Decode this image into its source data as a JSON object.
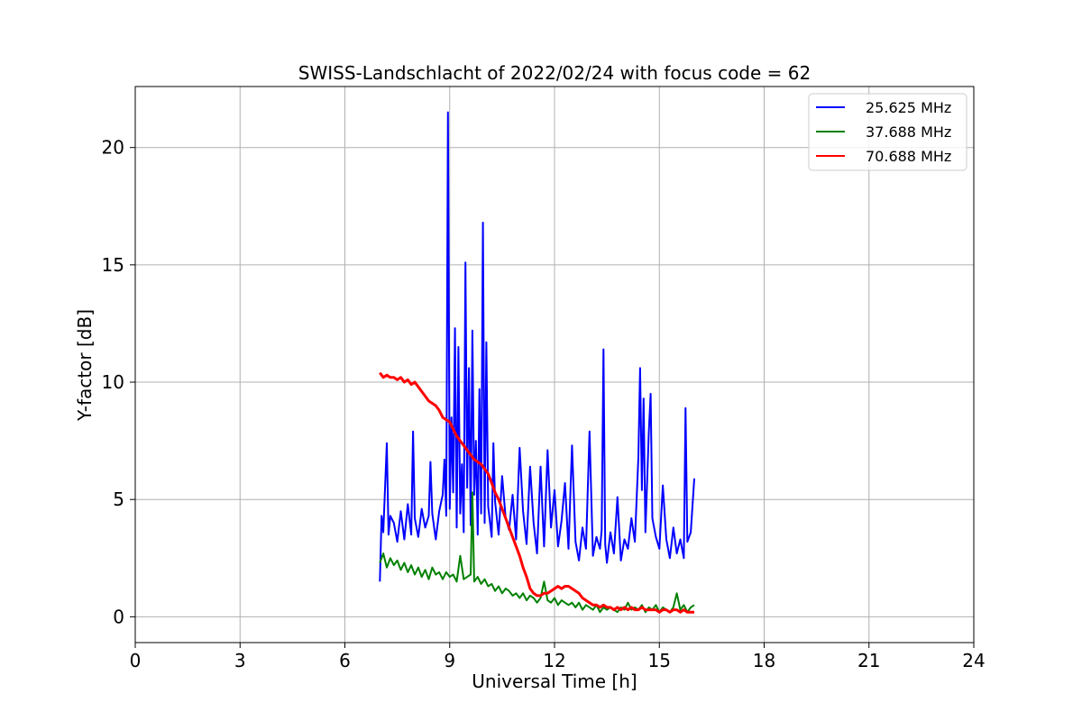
{
  "chart_data": {
    "type": "line",
    "title": "SWISS-Landschlacht of 2022/02/24 with focus code = 62",
    "xlabel": "Universal Time [h]",
    "ylabel": "Y-factor [dB]",
    "xlim": [
      0,
      24
    ],
    "ylim": [
      -1.1,
      22.6
    ],
    "xticks": [
      0,
      3,
      6,
      9,
      12,
      15,
      18,
      21,
      24
    ],
    "yticks": [
      0,
      5,
      10,
      15,
      20
    ],
    "grid": true,
    "legend_position": "top-right",
    "series": [
      {
        "name": "25.625 MHz",
        "color": "#0000ff",
        "x": [
          7.0,
          7.05,
          7.1,
          7.2,
          7.25,
          7.3,
          7.4,
          7.5,
          7.6,
          7.7,
          7.8,
          7.9,
          7.95,
          8.0,
          8.1,
          8.2,
          8.3,
          8.4,
          8.45,
          8.5,
          8.6,
          8.7,
          8.8,
          8.85,
          8.9,
          8.95,
          9.0,
          9.05,
          9.1,
          9.15,
          9.2,
          9.25,
          9.3,
          9.35,
          9.4,
          9.45,
          9.5,
          9.55,
          9.6,
          9.65,
          9.7,
          9.75,
          9.8,
          9.85,
          9.9,
          9.95,
          10.0,
          10.05,
          10.1,
          10.2,
          10.25,
          10.3,
          10.4,
          10.5,
          10.6,
          10.7,
          10.8,
          10.9,
          11.0,
          11.1,
          11.2,
          11.3,
          11.4,
          11.5,
          11.6,
          11.7,
          11.8,
          11.9,
          12.0,
          12.1,
          12.2,
          12.3,
          12.4,
          12.5,
          12.6,
          12.7,
          12.8,
          12.9,
          13.0,
          13.1,
          13.2,
          13.3,
          13.35,
          13.4,
          13.45,
          13.5,
          13.6,
          13.7,
          13.8,
          13.9,
          14.0,
          14.1,
          14.2,
          14.3,
          14.4,
          14.45,
          14.5,
          14.55,
          14.6,
          14.7,
          14.75,
          14.8,
          14.9,
          15.0,
          15.1,
          15.2,
          15.3,
          15.4,
          15.5,
          15.6,
          15.7,
          15.75,
          15.8,
          15.9,
          16.0
        ],
        "values": [
          1.5,
          4.3,
          3.6,
          7.4,
          3.5,
          4.3,
          4.0,
          3.2,
          4.5,
          3.3,
          4.8,
          3.5,
          7.9,
          4.2,
          3.4,
          4.6,
          3.8,
          4.3,
          6.6,
          4.4,
          3.3,
          4.5,
          5.2,
          6.7,
          4.3,
          21.5,
          4.6,
          8.5,
          5.3,
          12.3,
          3.8,
          11.5,
          4.4,
          6.5,
          3.6,
          15.1,
          5.5,
          10.6,
          3.9,
          12.2,
          5.2,
          7.5,
          3.5,
          9.7,
          4.4,
          16.8,
          4.0,
          11.7,
          4.7,
          3.4,
          7.4,
          4.9,
          3.5,
          6.0,
          4.2,
          3.7,
          5.2,
          3.3,
          7.2,
          4.5,
          3.1,
          6.4,
          4.0,
          2.7,
          6.4,
          3.0,
          7.1,
          3.8,
          5.4,
          3.0,
          4.1,
          5.7,
          2.9,
          7.3,
          3.2,
          2.4,
          3.8,
          2.9,
          7.9,
          2.6,
          3.4,
          2.9,
          3.7,
          11.4,
          3.1,
          2.3,
          3.6,
          2.7,
          5.1,
          2.4,
          3.3,
          2.9,
          4.2,
          3.2,
          6.8,
          10.6,
          5.4,
          9.3,
          3.6,
          7.9,
          9.5,
          4.2,
          3.4,
          2.9,
          5.6,
          3.3,
          2.5,
          3.8,
          2.7,
          3.3,
          2.5,
          8.9,
          3.2,
          3.6,
          5.9
        ]
      },
      {
        "name": "37.688 MHz",
        "color": "#008000",
        "x": [
          7.0,
          7.1,
          7.2,
          7.3,
          7.4,
          7.5,
          7.6,
          7.7,
          7.8,
          7.9,
          8.0,
          8.1,
          8.2,
          8.3,
          8.4,
          8.5,
          8.6,
          8.7,
          8.8,
          8.9,
          9.0,
          9.1,
          9.2,
          9.3,
          9.4,
          9.5,
          9.6,
          9.65,
          9.7,
          9.8,
          9.9,
          10.0,
          10.1,
          10.2,
          10.3,
          10.4,
          10.5,
          10.6,
          10.7,
          10.8,
          10.9,
          11.0,
          11.1,
          11.2,
          11.3,
          11.4,
          11.5,
          11.6,
          11.7,
          11.8,
          11.9,
          12.0,
          12.1,
          12.2,
          12.3,
          12.4,
          12.5,
          12.6,
          12.7,
          12.8,
          12.9,
          13.0,
          13.1,
          13.2,
          13.3,
          13.4,
          13.5,
          13.6,
          13.7,
          13.8,
          13.9,
          14.0,
          14.1,
          14.2,
          14.3,
          14.4,
          14.5,
          14.6,
          14.7,
          14.8,
          14.9,
          15.0,
          15.1,
          15.2,
          15.3,
          15.4,
          15.5,
          15.6,
          15.7,
          15.8,
          15.9,
          16.0
        ],
        "values": [
          2.3,
          2.7,
          2.1,
          2.5,
          2.2,
          2.4,
          2.0,
          2.3,
          1.9,
          2.2,
          1.8,
          2.1,
          1.7,
          2.0,
          1.6,
          2.1,
          1.8,
          1.9,
          1.6,
          1.9,
          1.7,
          1.8,
          1.5,
          2.6,
          1.6,
          1.7,
          1.8,
          5.3,
          1.5,
          1.7,
          1.4,
          1.6,
          1.3,
          1.4,
          1.1,
          1.3,
          1.0,
          1.2,
          1.1,
          0.9,
          1.0,
          0.8,
          1.0,
          0.7,
          0.9,
          0.8,
          0.6,
          0.8,
          1.5,
          0.7,
          0.6,
          0.8,
          0.5,
          0.7,
          0.6,
          0.5,
          0.6,
          0.4,
          0.6,
          0.3,
          0.5,
          0.4,
          0.3,
          0.5,
          0.2,
          0.4,
          0.3,
          0.4,
          0.3,
          0.2,
          0.4,
          0.3,
          0.6,
          0.3,
          0.4,
          0.3,
          0.5,
          0.2,
          0.4,
          0.3,
          0.5,
          0.2,
          0.4,
          0.3,
          0.2,
          0.4,
          1.0,
          0.3,
          0.5,
          0.2,
          0.4,
          0.5
        ]
      },
      {
        "name": "70.688 MHz",
        "color": "#ff0000",
        "x": [
          7.0,
          7.1,
          7.2,
          7.3,
          7.4,
          7.5,
          7.6,
          7.7,
          7.8,
          7.9,
          8.0,
          8.1,
          8.2,
          8.3,
          8.4,
          8.5,
          8.6,
          8.7,
          8.8,
          8.9,
          9.0,
          9.1,
          9.2,
          9.3,
          9.4,
          9.5,
          9.6,
          9.7,
          9.8,
          9.9,
          10.0,
          10.1,
          10.2,
          10.3,
          10.4,
          10.5,
          10.6,
          10.7,
          10.8,
          10.9,
          11.0,
          11.1,
          11.2,
          11.3,
          11.4,
          11.5,
          11.6,
          11.7,
          11.8,
          11.9,
          12.0,
          12.1,
          12.2,
          12.3,
          12.4,
          12.5,
          12.6,
          12.7,
          12.8,
          12.9,
          13.0,
          13.1,
          13.2,
          13.3,
          13.4,
          13.5,
          13.6,
          13.7,
          13.8,
          13.9,
          14.0,
          14.1,
          14.2,
          14.3,
          14.4,
          14.5,
          14.6,
          14.7,
          14.8,
          14.9,
          15.0,
          15.1,
          15.2,
          15.3,
          15.4,
          15.5,
          15.6,
          15.7,
          15.8,
          15.9,
          16.0
        ],
        "values": [
          10.4,
          10.2,
          10.3,
          10.2,
          10.2,
          10.1,
          10.2,
          10.0,
          10.1,
          9.9,
          10.0,
          9.8,
          9.6,
          9.4,
          9.2,
          9.1,
          9.0,
          8.8,
          8.5,
          8.4,
          8.3,
          8.0,
          7.7,
          7.5,
          7.3,
          7.1,
          6.9,
          6.7,
          6.6,
          6.5,
          6.3,
          6.1,
          5.7,
          5.3,
          5.0,
          4.6,
          4.2,
          3.8,
          3.4,
          3.0,
          2.6,
          2.1,
          1.7,
          1.2,
          1.0,
          0.9,
          0.9,
          1.0,
          1.0,
          1.1,
          1.2,
          1.3,
          1.2,
          1.3,
          1.3,
          1.2,
          1.1,
          1.0,
          0.8,
          0.7,
          0.6,
          0.5,
          0.5,
          0.4,
          0.5,
          0.4,
          0.4,
          0.3,
          0.4,
          0.3,
          0.4,
          0.3,
          0.4,
          0.3,
          0.3,
          0.4,
          0.3,
          0.3,
          0.3,
          0.3,
          0.2,
          0.3,
          0.3,
          0.2,
          0.3,
          0.3,
          0.2,
          0.3,
          0.2,
          0.2,
          0.2
        ]
      }
    ]
  }
}
